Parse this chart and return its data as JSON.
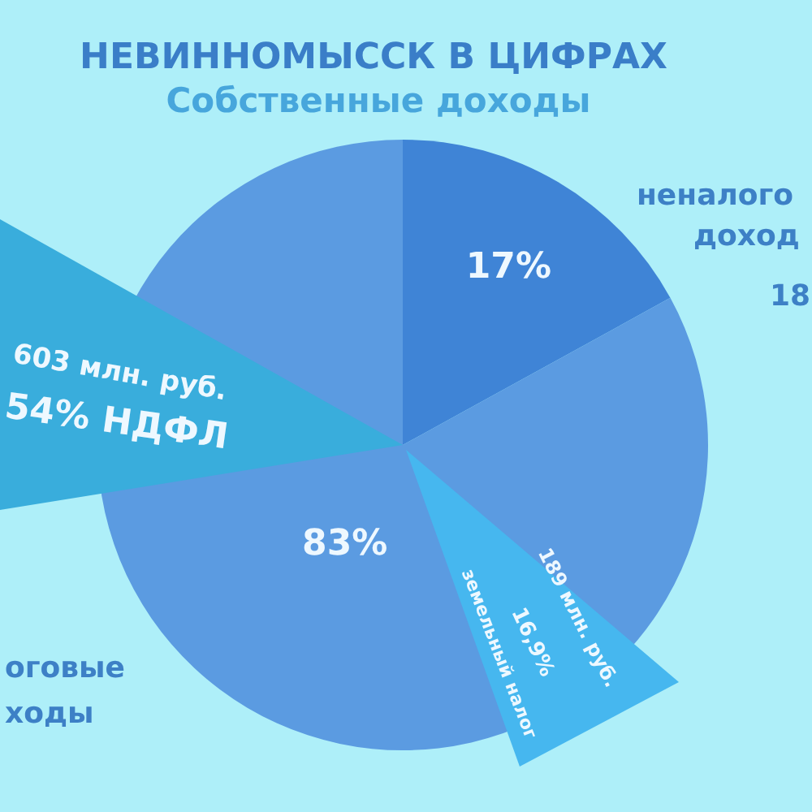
{
  "chart_data": {
    "type": "pie",
    "title": "НЕВИННОМЫССК В ЦИФРАХ",
    "subtitle": "Собственные доходы",
    "categories": [
      null,
      null
    ],
    "values": [
      17,
      83
    ],
    "colors": [
      "#3f84d6",
      "#5b9be1"
    ],
    "value_labels": [
      "17%",
      "83%"
    ],
    "annotations": [
      "неналого",
      "доход",
      "18",
      "оговые",
      "ходы",
      "603 млн. руб.",
      "54% НДФЛ",
      "189 млн. руб.",
      "16,9%",
      "земельный налог"
    ]
  }
}
